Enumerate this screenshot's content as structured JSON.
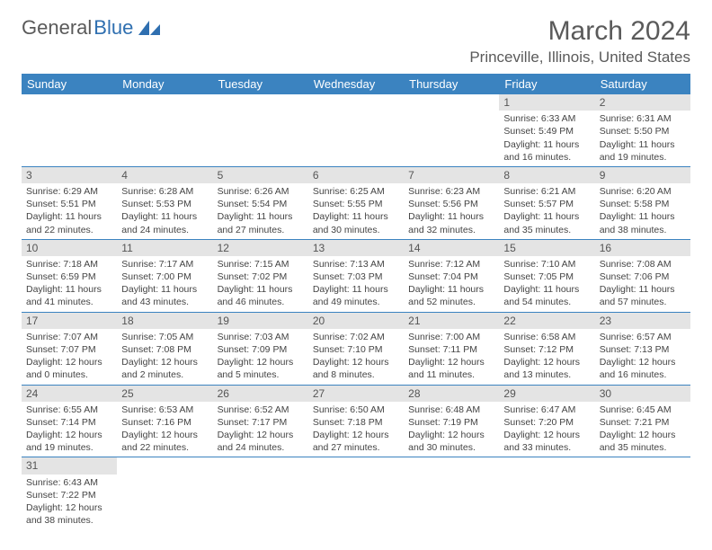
{
  "logo": {
    "text1": "General",
    "text2": "Blue"
  },
  "title": "March 2024",
  "location": "Princeville, Illinois, United States",
  "colors": {
    "header_bg": "#3b83c0",
    "daynum_bg": "#e4e4e4",
    "rule": "#3b83c0",
    "logo_gray": "#5a5a5a",
    "logo_blue": "#2f6fb0"
  },
  "weekdays": [
    "Sunday",
    "Monday",
    "Tuesday",
    "Wednesday",
    "Thursday",
    "Friday",
    "Saturday"
  ],
  "weeks": [
    [
      null,
      null,
      null,
      null,
      null,
      {
        "n": "1",
        "sr": "6:33 AM",
        "ss": "5:49 PM",
        "dl": "11 hours and 16 minutes."
      },
      {
        "n": "2",
        "sr": "6:31 AM",
        "ss": "5:50 PM",
        "dl": "11 hours and 19 minutes."
      }
    ],
    [
      {
        "n": "3",
        "sr": "6:29 AM",
        "ss": "5:51 PM",
        "dl": "11 hours and 22 minutes."
      },
      {
        "n": "4",
        "sr": "6:28 AM",
        "ss": "5:53 PM",
        "dl": "11 hours and 24 minutes."
      },
      {
        "n": "5",
        "sr": "6:26 AM",
        "ss": "5:54 PM",
        "dl": "11 hours and 27 minutes."
      },
      {
        "n": "6",
        "sr": "6:25 AM",
        "ss": "5:55 PM",
        "dl": "11 hours and 30 minutes."
      },
      {
        "n": "7",
        "sr": "6:23 AM",
        "ss": "5:56 PM",
        "dl": "11 hours and 32 minutes."
      },
      {
        "n": "8",
        "sr": "6:21 AM",
        "ss": "5:57 PM",
        "dl": "11 hours and 35 minutes."
      },
      {
        "n": "9",
        "sr": "6:20 AM",
        "ss": "5:58 PM",
        "dl": "11 hours and 38 minutes."
      }
    ],
    [
      {
        "n": "10",
        "sr": "7:18 AM",
        "ss": "6:59 PM",
        "dl": "11 hours and 41 minutes."
      },
      {
        "n": "11",
        "sr": "7:17 AM",
        "ss": "7:00 PM",
        "dl": "11 hours and 43 minutes."
      },
      {
        "n": "12",
        "sr": "7:15 AM",
        "ss": "7:02 PM",
        "dl": "11 hours and 46 minutes."
      },
      {
        "n": "13",
        "sr": "7:13 AM",
        "ss": "7:03 PM",
        "dl": "11 hours and 49 minutes."
      },
      {
        "n": "14",
        "sr": "7:12 AM",
        "ss": "7:04 PM",
        "dl": "11 hours and 52 minutes."
      },
      {
        "n": "15",
        "sr": "7:10 AM",
        "ss": "7:05 PM",
        "dl": "11 hours and 54 minutes."
      },
      {
        "n": "16",
        "sr": "7:08 AM",
        "ss": "7:06 PM",
        "dl": "11 hours and 57 minutes."
      }
    ],
    [
      {
        "n": "17",
        "sr": "7:07 AM",
        "ss": "7:07 PM",
        "dl": "12 hours and 0 minutes."
      },
      {
        "n": "18",
        "sr": "7:05 AM",
        "ss": "7:08 PM",
        "dl": "12 hours and 2 minutes."
      },
      {
        "n": "19",
        "sr": "7:03 AM",
        "ss": "7:09 PM",
        "dl": "12 hours and 5 minutes."
      },
      {
        "n": "20",
        "sr": "7:02 AM",
        "ss": "7:10 PM",
        "dl": "12 hours and 8 minutes."
      },
      {
        "n": "21",
        "sr": "7:00 AM",
        "ss": "7:11 PM",
        "dl": "12 hours and 11 minutes."
      },
      {
        "n": "22",
        "sr": "6:58 AM",
        "ss": "7:12 PM",
        "dl": "12 hours and 13 minutes."
      },
      {
        "n": "23",
        "sr": "6:57 AM",
        "ss": "7:13 PM",
        "dl": "12 hours and 16 minutes."
      }
    ],
    [
      {
        "n": "24",
        "sr": "6:55 AM",
        "ss": "7:14 PM",
        "dl": "12 hours and 19 minutes."
      },
      {
        "n": "25",
        "sr": "6:53 AM",
        "ss": "7:16 PM",
        "dl": "12 hours and 22 minutes."
      },
      {
        "n": "26",
        "sr": "6:52 AM",
        "ss": "7:17 PM",
        "dl": "12 hours and 24 minutes."
      },
      {
        "n": "27",
        "sr": "6:50 AM",
        "ss": "7:18 PM",
        "dl": "12 hours and 27 minutes."
      },
      {
        "n": "28",
        "sr": "6:48 AM",
        "ss": "7:19 PM",
        "dl": "12 hours and 30 minutes."
      },
      {
        "n": "29",
        "sr": "6:47 AM",
        "ss": "7:20 PM",
        "dl": "12 hours and 33 minutes."
      },
      {
        "n": "30",
        "sr": "6:45 AM",
        "ss": "7:21 PM",
        "dl": "12 hours and 35 minutes."
      }
    ],
    [
      {
        "n": "31",
        "sr": "6:43 AM",
        "ss": "7:22 PM",
        "dl": "12 hours and 38 minutes."
      },
      null,
      null,
      null,
      null,
      null,
      null
    ]
  ],
  "labels": {
    "sunrise": "Sunrise:",
    "sunset": "Sunset:",
    "daylight": "Daylight:"
  }
}
